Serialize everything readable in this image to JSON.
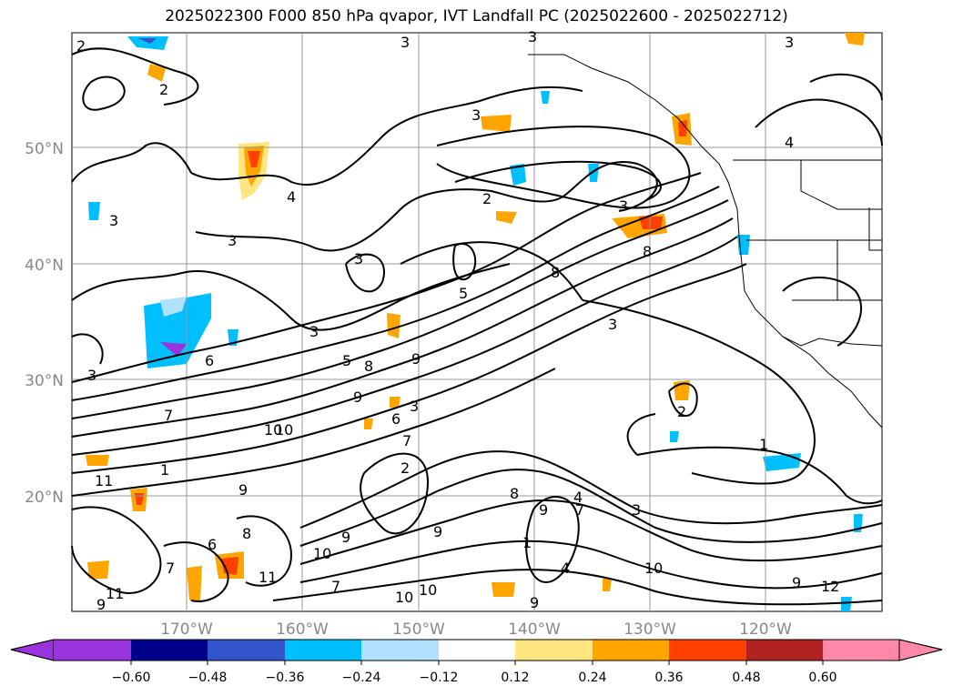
{
  "title": "2025022300 F000 850 hPa qvapor, IVT Landfall PC (2025022600 - 2025022712)",
  "lat_labels": [
    "50°N",
    "40°N",
    "30°N",
    "20°N"
  ],
  "lon_labels": [
    "170°W",
    "160°W",
    "150°W",
    "140°W",
    "130°W",
    "120°W"
  ],
  "colorbar": {
    "ticks": [
      "−0.60",
      "−0.48",
      "−0.36",
      "−0.24",
      "−0.12",
      "0.12",
      "0.24",
      "0.36",
      "0.48",
      "0.60"
    ],
    "colors": [
      "#9933dd",
      "#00008b",
      "#3355cc",
      "#00bfff",
      "#b0e2ff",
      "#ffffff",
      "#ffe680",
      "#ffa500",
      "#ff4000",
      "#b22222",
      "#ff88aa",
      "#ff88aa"
    ]
  },
  "contour_labels": [
    "2",
    "3",
    "2",
    "3",
    "3",
    "3",
    "4",
    "3",
    "2",
    "3",
    "3",
    "4",
    "3",
    "3",
    "5",
    "8",
    "9",
    "3",
    "8",
    "8",
    "9",
    "6",
    "5",
    "6",
    "3",
    "7",
    "10",
    "7",
    "10",
    "11",
    "9",
    "9",
    "9",
    "7",
    "4",
    "2",
    "1",
    "3",
    "9",
    "10",
    "11",
    "10",
    "12",
    "9",
    "8",
    "6",
    "7",
    "10",
    "11",
    "9",
    "10",
    "7",
    "1",
    "8",
    "4",
    "3",
    "2",
    "1",
    "9"
  ]
}
